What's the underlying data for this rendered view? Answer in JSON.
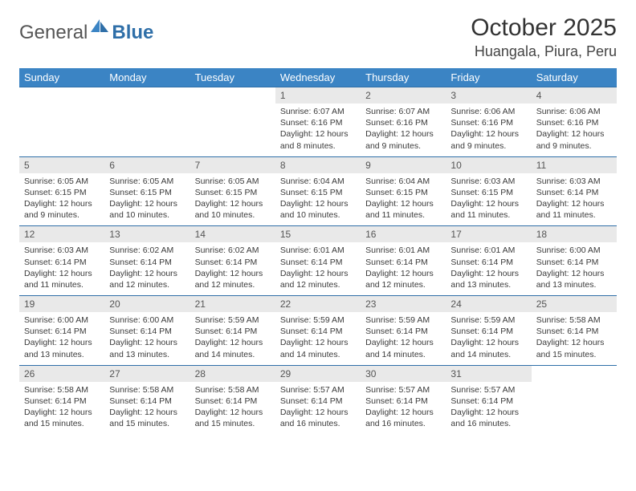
{
  "logo": {
    "text1": "General",
    "text2": "Blue"
  },
  "header": {
    "month_title": "October 2025",
    "location": "Huangala, Piura, Peru"
  },
  "styling": {
    "header_bg": "#3b84c4",
    "header_fg": "#ffffff",
    "daynum_bg": "#e9e9e9",
    "row_border": "#2f6fa8",
    "page_bg": "#ffffff",
    "text_color": "#3a3a3a",
    "title_fontsize": 30,
    "location_fontsize": 18,
    "header_fontsize": 13,
    "daynum_fontsize": 12,
    "detail_fontsize": 10.5
  },
  "weekdays": [
    "Sunday",
    "Monday",
    "Tuesday",
    "Wednesday",
    "Thursday",
    "Friday",
    "Saturday"
  ],
  "weeks": [
    [
      {
        "day": "",
        "sunrise": "",
        "sunset": "",
        "daylight": ""
      },
      {
        "day": "",
        "sunrise": "",
        "sunset": "",
        "daylight": ""
      },
      {
        "day": "",
        "sunrise": "",
        "sunset": "",
        "daylight": ""
      },
      {
        "day": "1",
        "sunrise": "Sunrise: 6:07 AM",
        "sunset": "Sunset: 6:16 PM",
        "daylight": "Daylight: 12 hours and 8 minutes."
      },
      {
        "day": "2",
        "sunrise": "Sunrise: 6:07 AM",
        "sunset": "Sunset: 6:16 PM",
        "daylight": "Daylight: 12 hours and 9 minutes."
      },
      {
        "day": "3",
        "sunrise": "Sunrise: 6:06 AM",
        "sunset": "Sunset: 6:16 PM",
        "daylight": "Daylight: 12 hours and 9 minutes."
      },
      {
        "day": "4",
        "sunrise": "Sunrise: 6:06 AM",
        "sunset": "Sunset: 6:16 PM",
        "daylight": "Daylight: 12 hours and 9 minutes."
      }
    ],
    [
      {
        "day": "5",
        "sunrise": "Sunrise: 6:05 AM",
        "sunset": "Sunset: 6:15 PM",
        "daylight": "Daylight: 12 hours and 9 minutes."
      },
      {
        "day": "6",
        "sunrise": "Sunrise: 6:05 AM",
        "sunset": "Sunset: 6:15 PM",
        "daylight": "Daylight: 12 hours and 10 minutes."
      },
      {
        "day": "7",
        "sunrise": "Sunrise: 6:05 AM",
        "sunset": "Sunset: 6:15 PM",
        "daylight": "Daylight: 12 hours and 10 minutes."
      },
      {
        "day": "8",
        "sunrise": "Sunrise: 6:04 AM",
        "sunset": "Sunset: 6:15 PM",
        "daylight": "Daylight: 12 hours and 10 minutes."
      },
      {
        "day": "9",
        "sunrise": "Sunrise: 6:04 AM",
        "sunset": "Sunset: 6:15 PM",
        "daylight": "Daylight: 12 hours and 11 minutes."
      },
      {
        "day": "10",
        "sunrise": "Sunrise: 6:03 AM",
        "sunset": "Sunset: 6:15 PM",
        "daylight": "Daylight: 12 hours and 11 minutes."
      },
      {
        "day": "11",
        "sunrise": "Sunrise: 6:03 AM",
        "sunset": "Sunset: 6:14 PM",
        "daylight": "Daylight: 12 hours and 11 minutes."
      }
    ],
    [
      {
        "day": "12",
        "sunrise": "Sunrise: 6:03 AM",
        "sunset": "Sunset: 6:14 PM",
        "daylight": "Daylight: 12 hours and 11 minutes."
      },
      {
        "day": "13",
        "sunrise": "Sunrise: 6:02 AM",
        "sunset": "Sunset: 6:14 PM",
        "daylight": "Daylight: 12 hours and 12 minutes."
      },
      {
        "day": "14",
        "sunrise": "Sunrise: 6:02 AM",
        "sunset": "Sunset: 6:14 PM",
        "daylight": "Daylight: 12 hours and 12 minutes."
      },
      {
        "day": "15",
        "sunrise": "Sunrise: 6:01 AM",
        "sunset": "Sunset: 6:14 PM",
        "daylight": "Daylight: 12 hours and 12 minutes."
      },
      {
        "day": "16",
        "sunrise": "Sunrise: 6:01 AM",
        "sunset": "Sunset: 6:14 PM",
        "daylight": "Daylight: 12 hours and 12 minutes."
      },
      {
        "day": "17",
        "sunrise": "Sunrise: 6:01 AM",
        "sunset": "Sunset: 6:14 PM",
        "daylight": "Daylight: 12 hours and 13 minutes."
      },
      {
        "day": "18",
        "sunrise": "Sunrise: 6:00 AM",
        "sunset": "Sunset: 6:14 PM",
        "daylight": "Daylight: 12 hours and 13 minutes."
      }
    ],
    [
      {
        "day": "19",
        "sunrise": "Sunrise: 6:00 AM",
        "sunset": "Sunset: 6:14 PM",
        "daylight": "Daylight: 12 hours and 13 minutes."
      },
      {
        "day": "20",
        "sunrise": "Sunrise: 6:00 AM",
        "sunset": "Sunset: 6:14 PM",
        "daylight": "Daylight: 12 hours and 13 minutes."
      },
      {
        "day": "21",
        "sunrise": "Sunrise: 5:59 AM",
        "sunset": "Sunset: 6:14 PM",
        "daylight": "Daylight: 12 hours and 14 minutes."
      },
      {
        "day": "22",
        "sunrise": "Sunrise: 5:59 AM",
        "sunset": "Sunset: 6:14 PM",
        "daylight": "Daylight: 12 hours and 14 minutes."
      },
      {
        "day": "23",
        "sunrise": "Sunrise: 5:59 AM",
        "sunset": "Sunset: 6:14 PM",
        "daylight": "Daylight: 12 hours and 14 minutes."
      },
      {
        "day": "24",
        "sunrise": "Sunrise: 5:59 AM",
        "sunset": "Sunset: 6:14 PM",
        "daylight": "Daylight: 12 hours and 14 minutes."
      },
      {
        "day": "25",
        "sunrise": "Sunrise: 5:58 AM",
        "sunset": "Sunset: 6:14 PM",
        "daylight": "Daylight: 12 hours and 15 minutes."
      }
    ],
    [
      {
        "day": "26",
        "sunrise": "Sunrise: 5:58 AM",
        "sunset": "Sunset: 6:14 PM",
        "daylight": "Daylight: 12 hours and 15 minutes."
      },
      {
        "day": "27",
        "sunrise": "Sunrise: 5:58 AM",
        "sunset": "Sunset: 6:14 PM",
        "daylight": "Daylight: 12 hours and 15 minutes."
      },
      {
        "day": "28",
        "sunrise": "Sunrise: 5:58 AM",
        "sunset": "Sunset: 6:14 PM",
        "daylight": "Daylight: 12 hours and 15 minutes."
      },
      {
        "day": "29",
        "sunrise": "Sunrise: 5:57 AM",
        "sunset": "Sunset: 6:14 PM",
        "daylight": "Daylight: 12 hours and 16 minutes."
      },
      {
        "day": "30",
        "sunrise": "Sunrise: 5:57 AM",
        "sunset": "Sunset: 6:14 PM",
        "daylight": "Daylight: 12 hours and 16 minutes."
      },
      {
        "day": "31",
        "sunrise": "Sunrise: 5:57 AM",
        "sunset": "Sunset: 6:14 PM",
        "daylight": "Daylight: 12 hours and 16 minutes."
      },
      {
        "day": "",
        "sunrise": "",
        "sunset": "",
        "daylight": ""
      }
    ]
  ]
}
